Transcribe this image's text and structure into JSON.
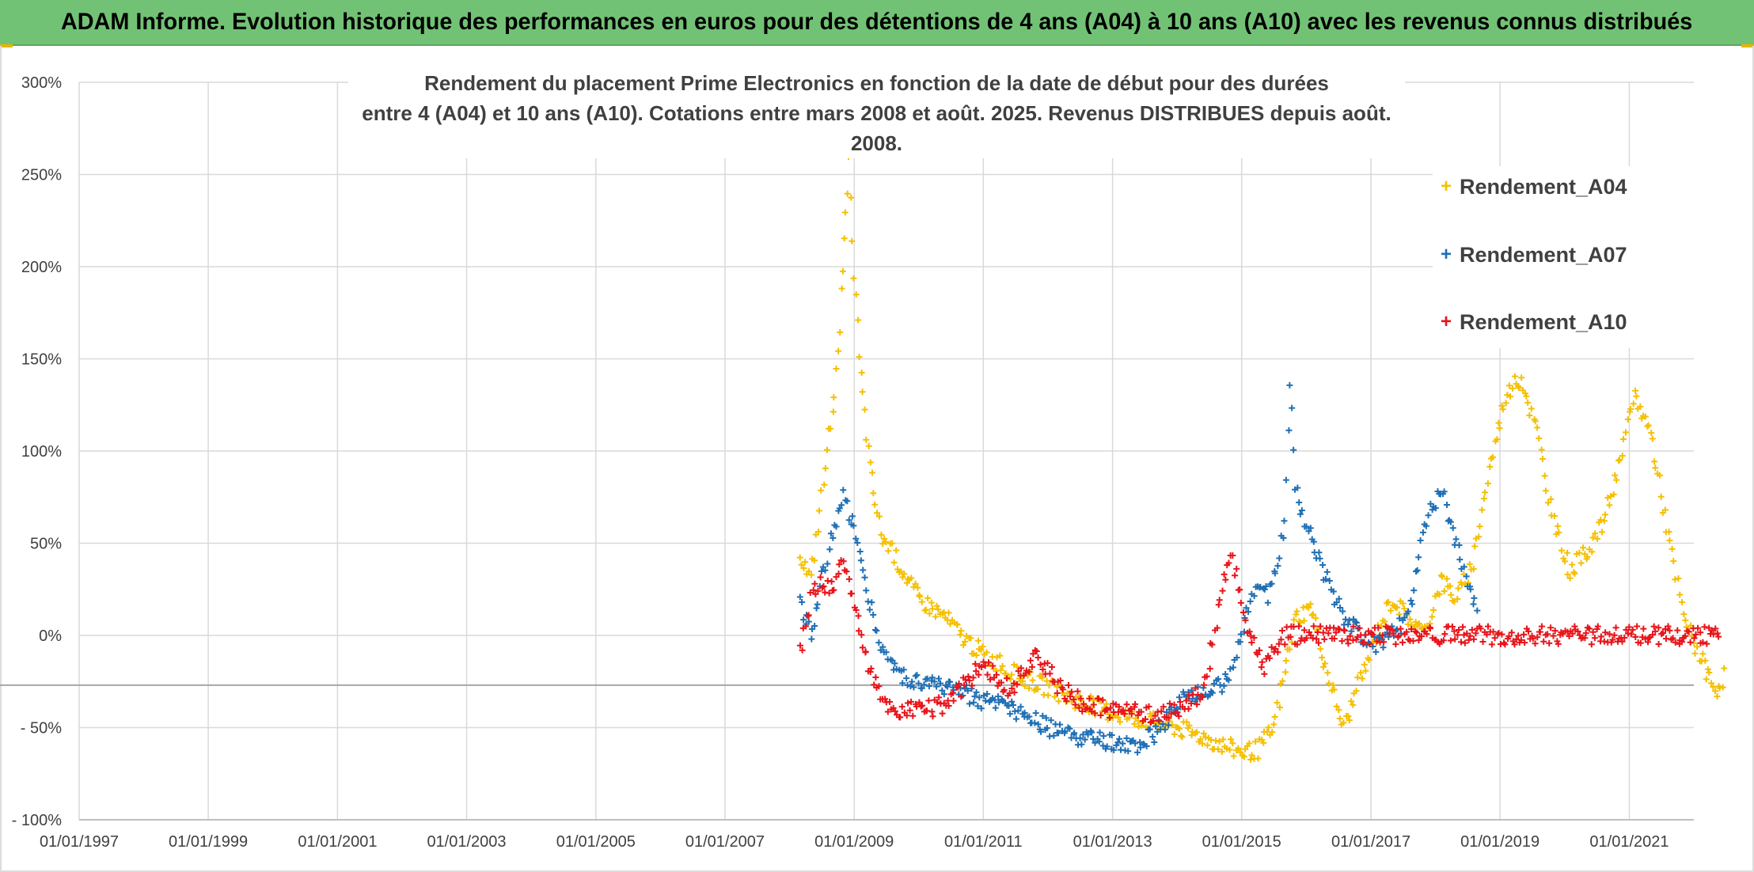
{
  "banner": {
    "title": "ADAM Informe. Evolution historique des performances en euros pour des détentions de 4 ans (A04) à 10 ans (A10) avec les revenus connus distribués"
  },
  "chart_data": {
    "type": "scatter",
    "title_line1": "Rendement du placement Prime Electronics  en fonction de la date de début pour des durées",
    "title_line2": "entre 4 (A04) et 10 ans (A10). Cotations entre mars 2008 et août. 2025. Revenus DISTRIBUES depuis août. 2008.",
    "xlabel": "",
    "ylabel": "",
    "x_range": [
      "1997-01-01",
      "2022-01-01"
    ],
    "ylim": [
      -100,
      300
    ],
    "y_ticks": [
      300,
      250,
      200,
      150,
      100,
      50,
      0,
      -50,
      -100
    ],
    "y_tick_labels": [
      "300%",
      "250%",
      "200%",
      "150%",
      "100%",
      "50%",
      "0%",
      "- 50%",
      "- 100%"
    ],
    "x_tick_labels": [
      "01/01/1997",
      "01/01/1999",
      "01/01/2001",
      "01/01/2003",
      "01/01/2005",
      "01/01/2007",
      "01/01/2009",
      "01/01/2011",
      "01/01/2013",
      "01/01/2015",
      "01/01/2017",
      "01/01/2019",
      "01/01/2021"
    ],
    "reference_line_y": -27,
    "grid": true,
    "legend_position": "top-right",
    "marker": "+",
    "series": [
      {
        "name": "Rendement_A04",
        "color": "#f5c000",
        "points": [
          [
            "2008-03-01",
            45
          ],
          [
            "2008-05-01",
            30
          ],
          [
            "2008-07-01",
            75
          ],
          [
            "2008-08-01",
            100
          ],
          [
            "2008-09-01",
            125
          ],
          [
            "2008-10-01",
            150
          ],
          [
            "2008-11-01",
            200
          ],
          [
            "2008-11-15",
            225
          ],
          [
            "2008-12-01",
            255
          ],
          [
            "2008-12-20",
            210
          ],
          [
            "2009-01-10",
            185
          ],
          [
            "2009-02-01",
            150
          ],
          [
            "2009-03-01",
            120
          ],
          [
            "2009-04-01",
            90
          ],
          [
            "2009-06-01",
            55
          ],
          [
            "2009-09-01",
            40
          ],
          [
            "2010-01-01",
            20
          ],
          [
            "2010-06-01",
            10
          ],
          [
            "2010-09-01",
            0
          ],
          [
            "2011-01-01",
            -10
          ],
          [
            "2011-06-01",
            -20
          ],
          [
            "2012-01-01",
            -28
          ],
          [
            "2012-06-01",
            -35
          ],
          [
            "2013-01-01",
            -42
          ],
          [
            "2013-06-01",
            -45
          ],
          [
            "2014-01-01",
            -50
          ],
          [
            "2014-06-01",
            -55
          ],
          [
            "2014-10-01",
            -60
          ],
          [
            "2015-01-01",
            -63
          ],
          [
            "2015-04-01",
            -62
          ],
          [
            "2015-07-01",
            -50
          ],
          [
            "2015-09-01",
            -20
          ],
          [
            "2015-11-01",
            10
          ],
          [
            "2016-02-01",
            15
          ],
          [
            "2016-05-01",
            -20
          ],
          [
            "2016-08-01",
            -50
          ],
          [
            "2016-11-01",
            -25
          ],
          [
            "2017-02-01",
            0
          ],
          [
            "2017-05-01",
            20
          ],
          [
            "2017-08-01",
            10
          ],
          [
            "2017-11-01",
            0
          ],
          [
            "2018-02-01",
            30
          ],
          [
            "2018-05-01",
            20
          ],
          [
            "2018-08-01",
            40
          ],
          [
            "2018-11-01",
            90
          ],
          [
            "2019-02-01",
            130
          ],
          [
            "2019-05-01",
            140
          ],
          [
            "2019-08-01",
            110
          ],
          [
            "2019-11-01",
            60
          ],
          [
            "2020-02-01",
            35
          ],
          [
            "2020-05-01",
            45
          ],
          [
            "2020-08-01",
            60
          ],
          [
            "2020-11-01",
            90
          ],
          [
            "2021-02-01",
            130
          ],
          [
            "2021-05-01",
            110
          ],
          [
            "2021-08-01",
            60
          ],
          [
            "2021-11-01",
            10
          ],
          [
            "2022-02-01",
            -10
          ],
          [
            "2022-05-01",
            -30
          ],
          [
            "2022-07-01",
            -20
          ]
        ]
      },
      {
        "name": "Rendement_A07",
        "color": "#1f6fb5",
        "points": [
          [
            "2008-03-01",
            20
          ],
          [
            "2008-05-01",
            0
          ],
          [
            "2008-07-01",
            30
          ],
          [
            "2008-09-01",
            55
          ],
          [
            "2008-11-01",
            75
          ],
          [
            "2009-01-01",
            60
          ],
          [
            "2009-03-01",
            30
          ],
          [
            "2009-06-01",
            -5
          ],
          [
            "2009-09-01",
            -20
          ],
          [
            "2010-01-01",
            -25
          ],
          [
            "2010-06-01",
            -28
          ],
          [
            "2011-01-01",
            -35
          ],
          [
            "2011-06-01",
            -40
          ],
          [
            "2012-01-01",
            -50
          ],
          [
            "2012-06-01",
            -55
          ],
          [
            "2013-01-01",
            -58
          ],
          [
            "2013-06-01",
            -60
          ],
          [
            "2013-10-01",
            -50
          ],
          [
            "2014-02-01",
            -35
          ],
          [
            "2014-06-01",
            -30
          ],
          [
            "2014-10-01",
            -25
          ],
          [
            "2015-01-01",
            0
          ],
          [
            "2015-04-01",
            30
          ],
          [
            "2015-06-01",
            20
          ],
          [
            "2015-09-01",
            60
          ],
          [
            "2015-10-01",
            140
          ],
          [
            "2015-11-01",
            80
          ],
          [
            "2016-02-01",
            50
          ],
          [
            "2016-05-01",
            30
          ],
          [
            "2016-08-01",
            10
          ],
          [
            "2016-11-01",
            0
          ],
          [
            "2017-02-01",
            -5
          ],
          [
            "2017-05-01",
            0
          ],
          [
            "2017-08-01",
            10
          ],
          [
            "2017-11-01",
            60
          ],
          [
            "2018-02-01",
            80
          ],
          [
            "2018-04-01",
            60
          ],
          [
            "2018-07-01",
            30
          ],
          [
            "2018-09-01",
            10
          ]
        ]
      },
      {
        "name": "Rendement_A10",
        "color": "#e8141a",
        "points": [
          [
            "2008-03-01",
            -10
          ],
          [
            "2008-05-01",
            20
          ],
          [
            "2008-07-01",
            30
          ],
          [
            "2008-09-01",
            25
          ],
          [
            "2008-11-01",
            40
          ],
          [
            "2009-01-01",
            20
          ],
          [
            "2009-03-01",
            -10
          ],
          [
            "2009-06-01",
            -35
          ],
          [
            "2009-09-01",
            -42
          ],
          [
            "2010-01-01",
            -40
          ],
          [
            "2010-06-01",
            -38
          ],
          [
            "2011-01-01",
            -15
          ],
          [
            "2011-06-01",
            -30
          ],
          [
            "2011-11-01",
            -10
          ],
          [
            "2012-03-01",
            -28
          ],
          [
            "2012-08-01",
            -38
          ],
          [
            "2013-01-01",
            -40
          ],
          [
            "2013-06-01",
            -42
          ],
          [
            "2013-10-01",
            -44
          ],
          [
            "2014-02-01",
            -38
          ],
          [
            "2014-06-01",
            -30
          ],
          [
            "2014-09-01",
            20
          ],
          [
            "2014-11-01",
            45
          ],
          [
            "2015-02-01",
            5
          ],
          [
            "2015-05-01",
            -18
          ],
          [
            "2015-09-01",
            0
          ],
          [
            "2016-06-01",
            0
          ],
          [
            "2017-06-01",
            0
          ],
          [
            "2018-06-01",
            0
          ],
          [
            "2019-06-01",
            0
          ],
          [
            "2020-06-01",
            0
          ],
          [
            "2021-06-01",
            0
          ],
          [
            "2022-06-01",
            0
          ]
        ]
      }
    ]
  }
}
